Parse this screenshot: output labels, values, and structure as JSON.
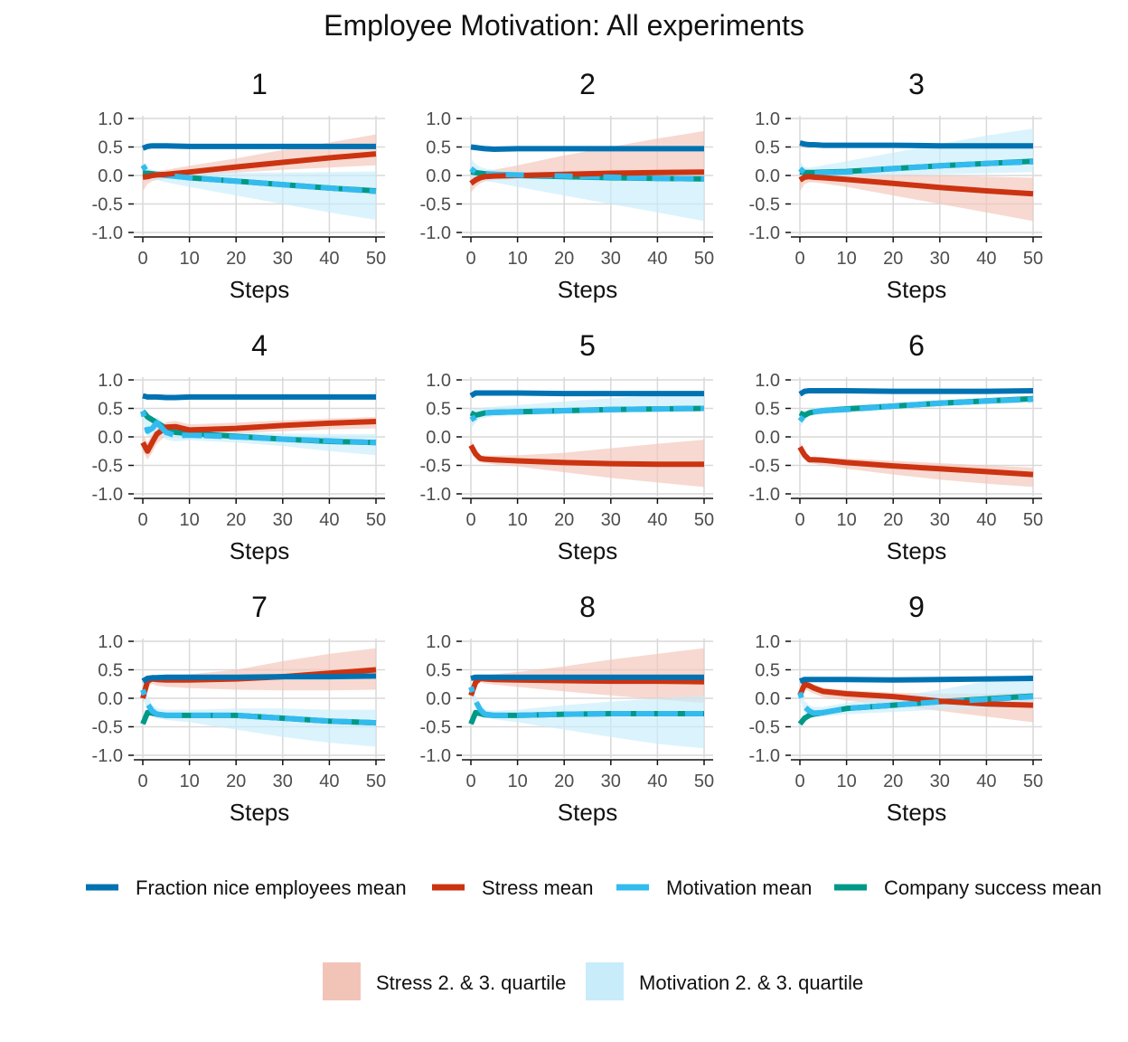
{
  "title": "Employee Motivation: All experiments",
  "chart_data": {
    "type": "line",
    "xlabel": "Steps",
    "ylabel": "",
    "xlim": [
      0,
      50
    ],
    "ylim": [
      -1.0,
      1.0
    ],
    "x_ticks": [
      0,
      10,
      20,
      30,
      40,
      50
    ],
    "y_ticks": [
      1.0,
      0.5,
      0.0,
      -0.5,
      -1.0
    ],
    "y_tick_labels": [
      "1.0",
      "0.5",
      "0.0",
      "-0.5",
      "-1.0"
    ],
    "grid": true,
    "legend_placement": "bottom",
    "series_legend": [
      {
        "key": "nice",
        "name": "Fraction nice employees mean",
        "color": "#0072B2",
        "dash": false
      },
      {
        "key": "stress",
        "name": "Stress mean",
        "color": "#CC3311",
        "dash": false
      },
      {
        "key": "motivation",
        "name": "Motivation mean",
        "color": "#33BBEE",
        "dash": false
      },
      {
        "key": "success",
        "name": "Company success mean",
        "color": "#009988",
        "dash": false
      }
    ],
    "band_legend": [
      {
        "key": "stress_band",
        "name": "Stress 2. & 3. quartile",
        "color": "#F2C4B8"
      },
      {
        "key": "motivation_band",
        "name": "Motivation 2. & 3. quartile",
        "color": "#C8ECFA"
      }
    ],
    "panels": [
      {
        "title": "1",
        "x": [
          0,
          1,
          2,
          3,
          5,
          10,
          20,
          30,
          40,
          50
        ],
        "nice": [
          0.48,
          0.51,
          0.52,
          0.52,
          0.52,
          0.51,
          0.51,
          0.51,
          0.51,
          0.51
        ],
        "stress": [
          -0.03,
          -0.02,
          0.0,
          0.01,
          0.02,
          0.06,
          0.15,
          0.23,
          0.31,
          0.38
        ],
        "motivation": [
          0.18,
          0.05,
          0.03,
          0.02,
          0.0,
          -0.04,
          -0.1,
          -0.16,
          -0.22,
          -0.28
        ],
        "success": [
          0.04,
          0.04,
          0.03,
          0.02,
          0.01,
          -0.04,
          -0.1,
          -0.16,
          -0.22,
          -0.27
        ],
        "stress_band": {
          "lo": [
            -0.28,
            -0.15,
            -0.1,
            -0.08,
            -0.06,
            -0.02,
            0.05,
            0.1,
            0.14,
            0.18
          ],
          "hi": [
            0.05,
            0.06,
            0.07,
            0.08,
            0.1,
            0.17,
            0.3,
            0.45,
            0.58,
            0.72
          ]
        },
        "motivation_band": {
          "lo": [
            -0.05,
            -0.05,
            -0.06,
            -0.08,
            -0.12,
            -0.2,
            -0.35,
            -0.5,
            -0.65,
            -0.78
          ],
          "hi": [
            0.25,
            0.12,
            0.1,
            0.08,
            0.07,
            0.06,
            0.05,
            0.05,
            0.06,
            0.07
          ]
        }
      },
      {
        "title": "2",
        "x": [
          0,
          1,
          2,
          3,
          5,
          10,
          20,
          30,
          40,
          50
        ],
        "nice": [
          0.5,
          0.49,
          0.48,
          0.47,
          0.46,
          0.47,
          0.47,
          0.47,
          0.47,
          0.47
        ],
        "stress": [
          -0.14,
          -0.08,
          -0.04,
          -0.02,
          -0.01,
          0.0,
          0.02,
          0.04,
          0.05,
          0.06
        ],
        "motivation": [
          0.12,
          0.06,
          0.04,
          0.03,
          0.02,
          0.01,
          -0.01,
          -0.03,
          -0.05,
          -0.06
        ],
        "success": [
          0.06,
          0.05,
          0.04,
          0.03,
          0.02,
          0.0,
          -0.02,
          -0.04,
          -0.05,
          -0.06
        ],
        "stress_band": {
          "lo": [
            -0.3,
            -0.2,
            -0.14,
            -0.1,
            -0.08,
            -0.06,
            -0.05,
            -0.05,
            -0.06,
            -0.07
          ],
          "hi": [
            0.02,
            0.04,
            0.06,
            0.08,
            0.1,
            0.18,
            0.35,
            0.5,
            0.65,
            0.78
          ]
        },
        "motivation_band": {
          "lo": [
            -0.05,
            -0.06,
            -0.08,
            -0.1,
            -0.12,
            -0.2,
            -0.35,
            -0.5,
            -0.65,
            -0.8
          ],
          "hi": [
            0.3,
            0.2,
            0.15,
            0.12,
            0.1,
            0.07,
            0.05,
            0.05,
            0.06,
            0.07
          ]
        }
      },
      {
        "title": "3",
        "x": [
          0,
          1,
          2,
          3,
          5,
          10,
          20,
          30,
          40,
          50
        ],
        "nice": [
          0.57,
          0.55,
          0.54,
          0.54,
          0.53,
          0.53,
          0.53,
          0.52,
          0.52,
          0.52
        ],
        "stress": [
          -0.08,
          -0.03,
          -0.02,
          -0.03,
          -0.04,
          -0.07,
          -0.14,
          -0.21,
          -0.27,
          -0.32
        ],
        "motivation": [
          0.12,
          0.05,
          0.04,
          0.04,
          0.05,
          0.06,
          0.12,
          0.17,
          0.21,
          0.24
        ],
        "success": [
          0.06,
          0.05,
          0.05,
          0.05,
          0.06,
          0.07,
          0.12,
          0.17,
          0.21,
          0.25
        ],
        "stress_band": {
          "lo": [
            -0.28,
            -0.15,
            -0.12,
            -0.12,
            -0.14,
            -0.2,
            -0.35,
            -0.5,
            -0.65,
            -0.8
          ],
          "hi": [
            0.02,
            0.04,
            0.05,
            0.05,
            0.05,
            0.04,
            0.02,
            0.0,
            -0.02,
            -0.04
          ]
        },
        "motivation_band": {
          "lo": [
            -0.05,
            -0.05,
            -0.05,
            -0.04,
            -0.03,
            -0.02,
            0.0,
            0.02,
            0.04,
            0.06
          ],
          "hi": [
            0.25,
            0.15,
            0.14,
            0.15,
            0.18,
            0.25,
            0.4,
            0.55,
            0.7,
            0.82
          ]
        }
      },
      {
        "title": "4",
        "x": [
          0,
          1,
          2,
          3,
          5,
          7,
          10,
          20,
          30,
          40,
          50
        ],
        "nice": [
          0.72,
          0.7,
          0.7,
          0.7,
          0.69,
          0.69,
          0.7,
          0.7,
          0.7,
          0.7,
          0.7
        ],
        "stress": [
          -0.1,
          -0.25,
          -0.1,
          0.05,
          0.17,
          0.18,
          0.12,
          0.15,
          0.2,
          0.24,
          0.27
        ],
        "motivation": [
          0.45,
          0.1,
          0.15,
          0.25,
          0.08,
          0.02,
          0.03,
          0.0,
          -0.04,
          -0.07,
          -0.1
        ],
        "success": [
          0.45,
          0.35,
          0.3,
          0.25,
          0.15,
          0.08,
          0.06,
          0.01,
          -0.04,
          -0.08,
          -0.1
        ],
        "stress_band": {
          "lo": [
            -0.25,
            -0.4,
            -0.28,
            -0.12,
            0.02,
            0.05,
            0.03,
            0.06,
            0.1,
            0.13,
            0.15
          ],
          "hi": [
            0.05,
            -0.1,
            0.05,
            0.18,
            0.26,
            0.28,
            0.22,
            0.25,
            0.29,
            0.32,
            0.35
          ]
        },
        "motivation_band": {
          "lo": [
            0.3,
            0.0,
            0.02,
            0.08,
            -0.05,
            -0.08,
            -0.06,
            -0.1,
            -0.16,
            -0.25,
            -0.32
          ],
          "hi": [
            0.55,
            0.3,
            0.3,
            0.35,
            0.2,
            0.1,
            0.1,
            0.08,
            0.06,
            0.05,
            0.05
          ]
        }
      },
      {
        "title": "5",
        "x": [
          0,
          1,
          2,
          3,
          5,
          10,
          20,
          30,
          40,
          50
        ],
        "nice": [
          0.72,
          0.77,
          0.77,
          0.77,
          0.77,
          0.77,
          0.76,
          0.76,
          0.76,
          0.76
        ],
        "stress": [
          -0.15,
          -0.3,
          -0.38,
          -0.39,
          -0.4,
          -0.42,
          -0.45,
          -0.47,
          -0.48,
          -0.48
        ],
        "motivation": [
          0.3,
          0.35,
          0.4,
          0.42,
          0.43,
          0.44,
          0.46,
          0.48,
          0.49,
          0.5
        ],
        "success": [
          0.42,
          0.38,
          0.4,
          0.42,
          0.43,
          0.44,
          0.46,
          0.48,
          0.49,
          0.5
        ],
        "stress_band": {
          "lo": [
            -0.25,
            -0.38,
            -0.45,
            -0.46,
            -0.48,
            -0.52,
            -0.62,
            -0.72,
            -0.8,
            -0.88
          ],
          "hi": [
            -0.05,
            -0.2,
            -0.32,
            -0.33,
            -0.33,
            -0.32,
            -0.28,
            -0.2,
            -0.12,
            -0.05
          ]
        },
        "motivation_band": {
          "lo": [
            0.15,
            0.25,
            0.32,
            0.34,
            0.36,
            0.38,
            0.4,
            0.42,
            0.44,
            0.45
          ],
          "hi": [
            0.45,
            0.5,
            0.5,
            0.52,
            0.53,
            0.56,
            0.62,
            0.68,
            0.73,
            0.78
          ]
        }
      },
      {
        "title": "6",
        "x": [
          0,
          1,
          2,
          3,
          5,
          10,
          20,
          30,
          40,
          50
        ],
        "nice": [
          0.75,
          0.8,
          0.81,
          0.81,
          0.81,
          0.81,
          0.8,
          0.8,
          0.8,
          0.81
        ],
        "stress": [
          -0.18,
          -0.32,
          -0.4,
          -0.4,
          -0.41,
          -0.45,
          -0.51,
          -0.56,
          -0.61,
          -0.66
        ],
        "motivation": [
          0.28,
          0.38,
          0.42,
          0.44,
          0.46,
          0.48,
          0.54,
          0.59,
          0.63,
          0.66
        ],
        "success": [
          0.42,
          0.38,
          0.42,
          0.44,
          0.46,
          0.49,
          0.54,
          0.59,
          0.63,
          0.67
        ],
        "stress_band": {
          "lo": [
            -0.28,
            -0.4,
            -0.46,
            -0.47,
            -0.5,
            -0.56,
            -0.66,
            -0.75,
            -0.82,
            -0.88
          ],
          "hi": [
            -0.08,
            -0.25,
            -0.35,
            -0.36,
            -0.37,
            -0.38,
            -0.42,
            -0.46,
            -0.5,
            -0.54
          ]
        },
        "motivation_band": {
          "lo": [
            0.15,
            0.3,
            0.36,
            0.38,
            0.4,
            0.43,
            0.48,
            0.53,
            0.57,
            0.6
          ],
          "hi": [
            0.42,
            0.46,
            0.48,
            0.5,
            0.52,
            0.55,
            0.6,
            0.65,
            0.69,
            0.72
          ]
        }
      },
      {
        "title": "7",
        "x": [
          0,
          1,
          2,
          3,
          5,
          10,
          20,
          30,
          40,
          50
        ],
        "nice": [
          0.3,
          0.35,
          0.36,
          0.36,
          0.37,
          0.37,
          0.37,
          0.38,
          0.38,
          0.39
        ],
        "stress": [
          0.0,
          0.3,
          0.34,
          0.33,
          0.32,
          0.32,
          0.34,
          0.38,
          0.44,
          0.5
        ],
        "motivation": [
          0.15,
          -0.1,
          -0.22,
          -0.28,
          -0.3,
          -0.3,
          -0.3,
          -0.35,
          -0.4,
          -0.43
        ],
        "success": [
          -0.45,
          -0.25,
          -0.26,
          -0.28,
          -0.3,
          -0.3,
          -0.3,
          -0.35,
          -0.4,
          -0.43
        ],
        "stress_band": {
          "lo": [
            -0.1,
            0.2,
            0.25,
            0.22,
            0.2,
            0.18,
            0.15,
            0.14,
            0.14,
            0.15
          ],
          "hi": [
            0.1,
            0.38,
            0.4,
            0.4,
            0.4,
            0.42,
            0.5,
            0.65,
            0.78,
            0.88
          ]
        },
        "motivation_band": {
          "lo": [
            0.0,
            -0.2,
            -0.3,
            -0.35,
            -0.38,
            -0.42,
            -0.55,
            -0.68,
            -0.78,
            -0.85
          ],
          "hi": [
            0.3,
            0.05,
            -0.12,
            -0.18,
            -0.2,
            -0.2,
            -0.18,
            -0.18,
            -0.2,
            -0.2
          ]
        }
      },
      {
        "title": "8",
        "x": [
          0,
          1,
          2,
          3,
          5,
          10,
          20,
          30,
          40,
          50
        ],
        "nice": [
          0.35,
          0.37,
          0.37,
          0.37,
          0.37,
          0.37,
          0.37,
          0.37,
          0.37,
          0.37
        ],
        "stress": [
          0.05,
          0.28,
          0.35,
          0.34,
          0.33,
          0.32,
          0.31,
          0.3,
          0.3,
          0.29
        ],
        "motivation": [
          0.2,
          -0.05,
          -0.2,
          -0.28,
          -0.3,
          -0.3,
          -0.28,
          -0.27,
          -0.27,
          -0.27
        ],
        "success": [
          -0.45,
          -0.25,
          -0.27,
          -0.29,
          -0.3,
          -0.3,
          -0.28,
          -0.27,
          -0.27,
          -0.27
        ],
        "stress_band": {
          "lo": [
            -0.05,
            0.2,
            0.28,
            0.26,
            0.24,
            0.2,
            0.12,
            0.05,
            -0.02,
            -0.08
          ],
          "hi": [
            0.15,
            0.36,
            0.4,
            0.41,
            0.42,
            0.46,
            0.56,
            0.68,
            0.78,
            0.88
          ]
        },
        "motivation_band": {
          "lo": [
            0.05,
            -0.15,
            -0.28,
            -0.34,
            -0.37,
            -0.42,
            -0.55,
            -0.68,
            -0.8,
            -0.88
          ],
          "hi": [
            0.3,
            0.05,
            -0.12,
            -0.2,
            -0.22,
            -0.2,
            -0.12,
            -0.06,
            0.0,
            0.05
          ]
        }
      },
      {
        "title": "9",
        "x": [
          0,
          1,
          2,
          3,
          5,
          10,
          20,
          30,
          40,
          50
        ],
        "nice": [
          0.3,
          0.33,
          0.33,
          0.33,
          0.33,
          0.33,
          0.32,
          0.33,
          0.34,
          0.35
        ],
        "stress": [
          0.05,
          0.25,
          0.22,
          0.18,
          0.12,
          0.08,
          0.03,
          -0.05,
          -0.1,
          -0.12
        ],
        "motivation": [
          0.1,
          -0.15,
          -0.22,
          -0.26,
          -0.25,
          -0.18,
          -0.12,
          -0.06,
          -0.02,
          0.03
        ],
        "success": [
          -0.45,
          -0.35,
          -0.3,
          -0.28,
          -0.25,
          -0.18,
          -0.12,
          -0.06,
          -0.01,
          0.04
        ],
        "stress_band": {
          "lo": [
            -0.05,
            0.15,
            0.12,
            0.08,
            0.02,
            -0.04,
            -0.12,
            -0.22,
            -0.32,
            -0.42
          ],
          "hi": [
            0.15,
            0.32,
            0.28,
            0.24,
            0.18,
            0.14,
            0.1,
            0.08,
            0.08,
            0.1
          ]
        },
        "motivation_band": {
          "lo": [
            0.0,
            -0.25,
            -0.3,
            -0.32,
            -0.32,
            -0.28,
            -0.24,
            -0.2,
            -0.18,
            -0.15
          ],
          "hi": [
            0.2,
            -0.05,
            -0.12,
            -0.15,
            -0.15,
            -0.08,
            0.02,
            0.15,
            0.3,
            0.42
          ]
        }
      }
    ]
  }
}
